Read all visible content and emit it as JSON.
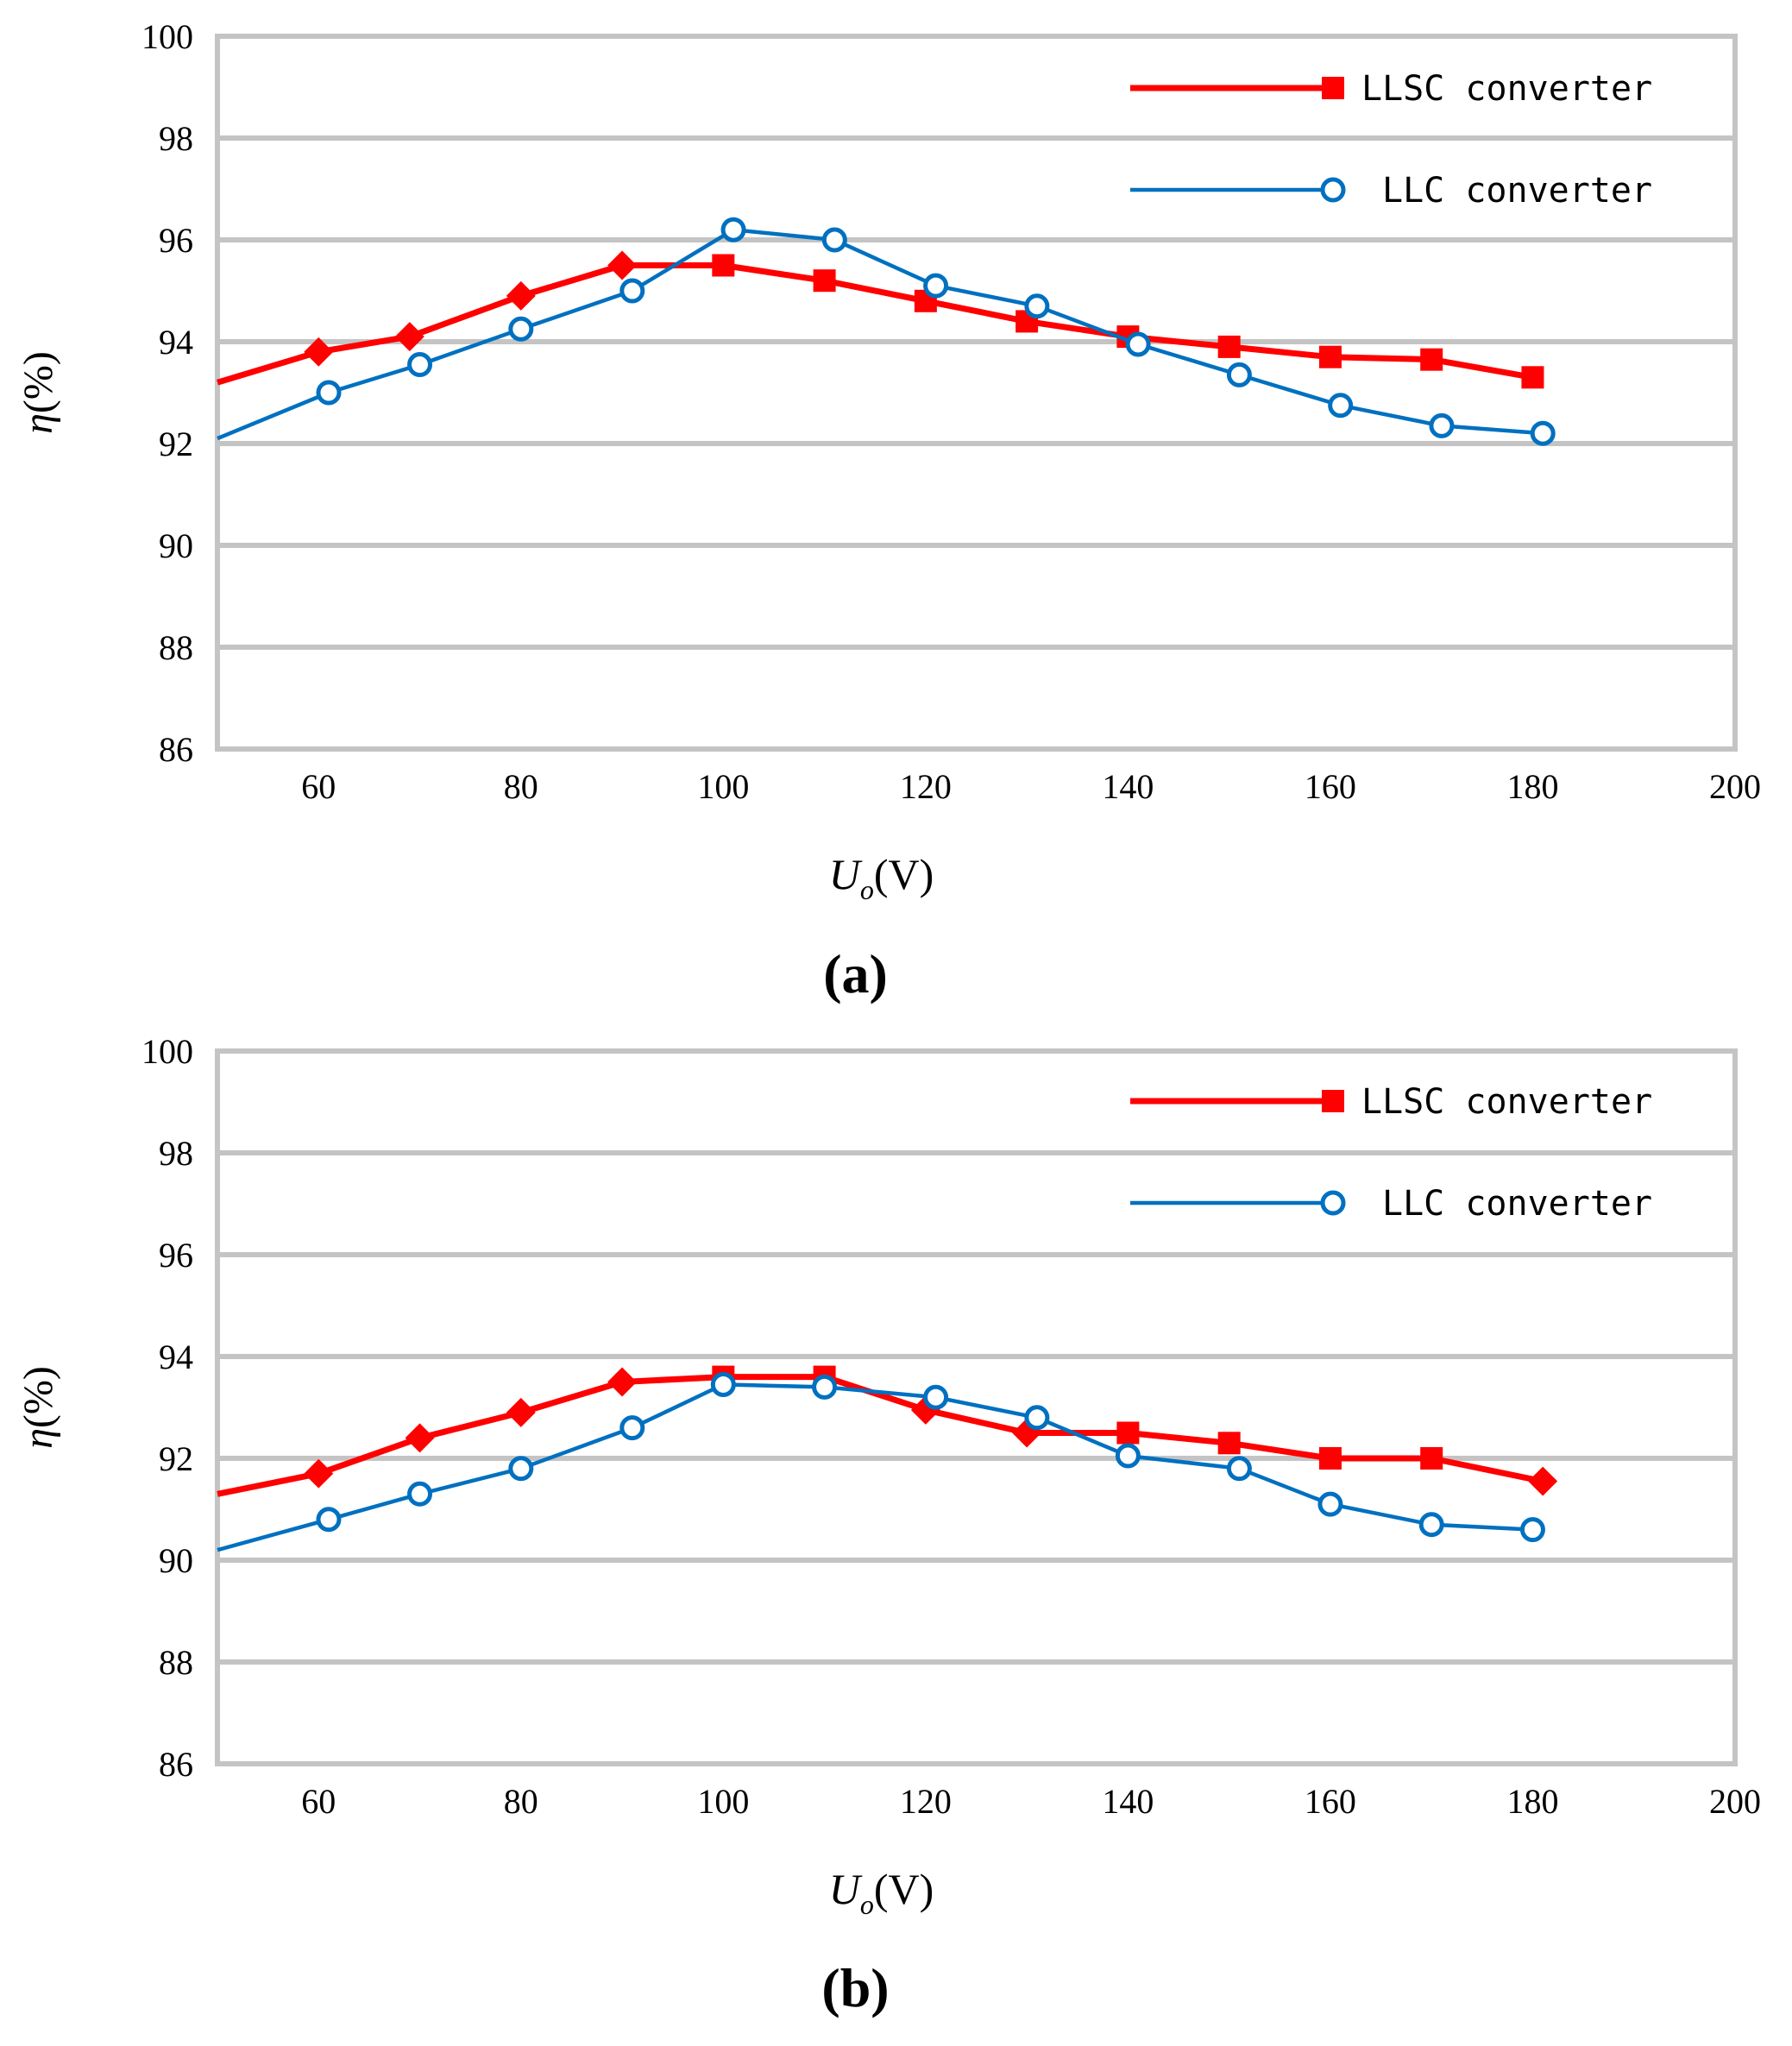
{
  "chart_data": [
    {
      "type": "line",
      "panel_label": "(a)",
      "xlabel_main": "U",
      "xlabel_sub": "o",
      "xlabel_unit": "(V)",
      "ylabel_symbol": "η",
      "ylabel_unit": "(%)",
      "xlim": [
        50,
        200
      ],
      "ylim": [
        86,
        100
      ],
      "x_ticks": [
        60,
        80,
        100,
        120,
        140,
        160,
        180,
        200
      ],
      "y_ticks": [
        86,
        88,
        90,
        92,
        94,
        96,
        98,
        100
      ],
      "grid": "horizontal",
      "legend_position": "top-right",
      "series": [
        {
          "name": "LLSC converter",
          "color": "#ff0000",
          "x": [
            50,
            60,
            69,
            80,
            90,
            100,
            110,
            120,
            130,
            140,
            150,
            160,
            170,
            180
          ],
          "values": [
            93.2,
            93.8,
            94.1,
            94.9,
            95.5,
            95.5,
            95.2,
            94.8,
            94.4,
            94.1,
            93.9,
            93.7,
            93.65,
            93.3
          ],
          "markers": [
            "none",
            "diamond",
            "diamond",
            "diamond",
            "diamond",
            "square",
            "square",
            "square",
            "square",
            "square",
            "square",
            "square",
            "square",
            "square"
          ]
        },
        {
          "name": "LLC converter",
          "color": "#0070c0",
          "x": [
            50,
            61,
            70,
            80,
            91,
            101,
            111,
            121,
            131,
            141,
            151,
            161,
            171,
            181
          ],
          "values": [
            92.1,
            93.0,
            93.55,
            94.25,
            95.0,
            96.2,
            96.0,
            95.1,
            94.7,
            93.95,
            93.35,
            92.75,
            92.35,
            92.2
          ],
          "markers": [
            "none",
            "circle",
            "circle",
            "circle",
            "circle",
            "circle",
            "circle",
            "circle",
            "circle",
            "circle",
            "circle",
            "circle",
            "circle",
            "circle"
          ]
        }
      ]
    },
    {
      "type": "line",
      "panel_label": "(b)",
      "xlabel_main": "U",
      "xlabel_sub": "o",
      "xlabel_unit": "(V)",
      "ylabel_symbol": "η",
      "ylabel_unit": "(%)",
      "xlim": [
        50,
        200
      ],
      "ylim": [
        86,
        100
      ],
      "x_ticks": [
        60,
        80,
        100,
        120,
        140,
        160,
        180,
        200
      ],
      "y_ticks": [
        86,
        88,
        90,
        92,
        94,
        96,
        98,
        100
      ],
      "grid": "horizontal",
      "legend_position": "top-right",
      "series": [
        {
          "name": "LLSC converter",
          "color": "#ff0000",
          "x": [
            50,
            60,
            70,
            80,
            90,
            100,
            110,
            120,
            130,
            140,
            150,
            160,
            170,
            181
          ],
          "values": [
            91.3,
            91.7,
            92.4,
            92.9,
            93.5,
            93.6,
            93.6,
            92.95,
            92.5,
            92.5,
            92.3,
            92.0,
            92.0,
            91.55
          ],
          "markers": [
            "none",
            "diamond",
            "diamond",
            "diamond",
            "diamond",
            "square",
            "square",
            "diamond",
            "diamond",
            "square",
            "square",
            "square",
            "square",
            "diamond"
          ]
        },
        {
          "name": "LLC converter",
          "color": "#0070c0",
          "x": [
            50,
            61,
            70,
            80,
            91,
            100,
            110,
            121,
            131,
            140,
            151,
            160,
            170,
            180
          ],
          "values": [
            90.2,
            90.8,
            91.3,
            91.8,
            92.6,
            93.45,
            93.4,
            93.2,
            92.8,
            92.05,
            91.8,
            91.1,
            90.7,
            90.6
          ],
          "markers": [
            "none",
            "circle",
            "circle",
            "circle",
            "circle",
            "circle",
            "circle",
            "circle",
            "circle",
            "circle",
            "circle",
            "circle",
            "circle",
            "circle"
          ]
        }
      ]
    }
  ]
}
